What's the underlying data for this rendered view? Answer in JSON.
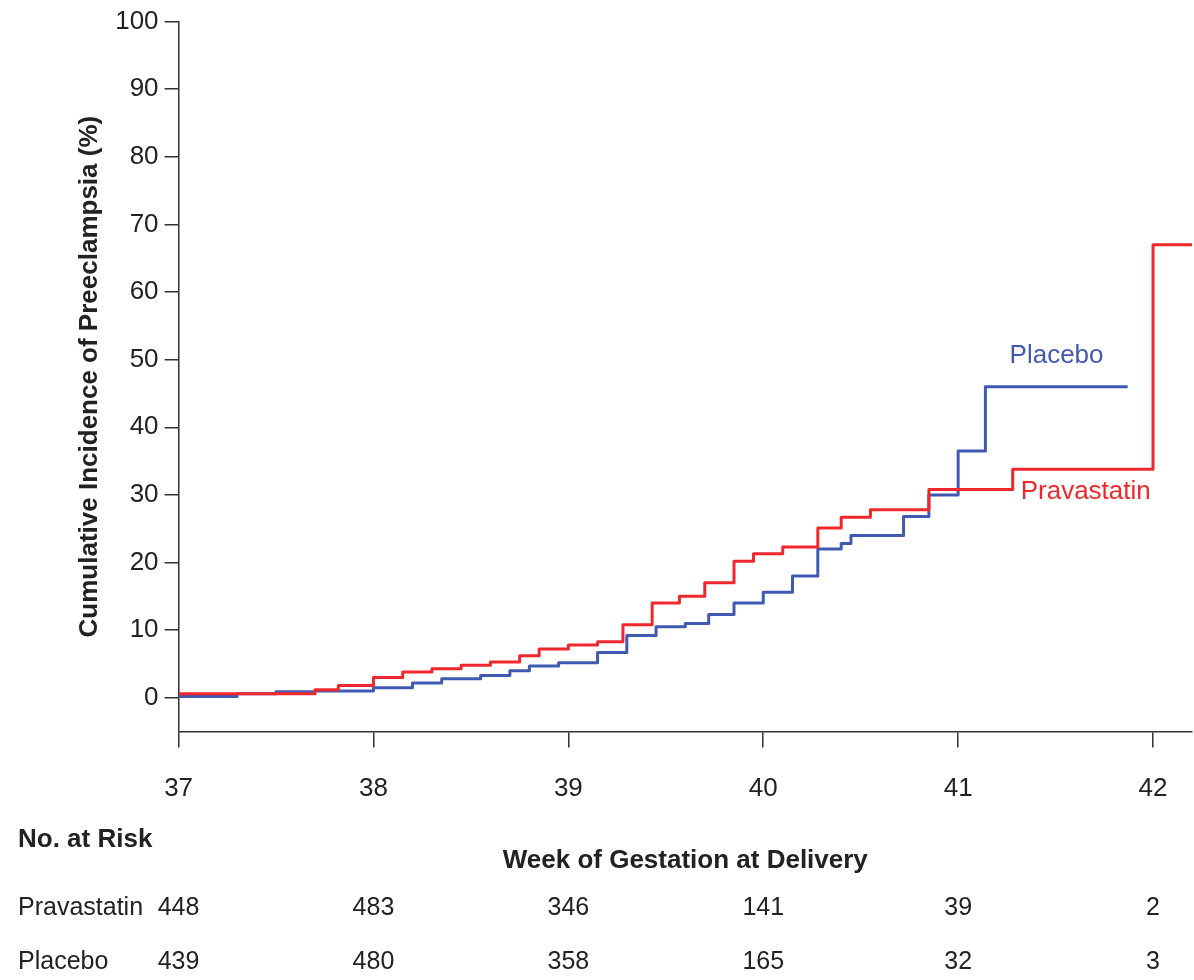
{
  "chart_data": {
    "type": "step",
    "xlabel": "Week of Gestation at Delivery",
    "ylabel": "Cumulative Incidence of Preeclampsia (%)",
    "xlim": [
      37,
      42.2
    ],
    "xticks": [
      37,
      38,
      39,
      40,
      41,
      42
    ],
    "ylim": [
      -5,
      100
    ],
    "yticks": [
      0,
      10,
      20,
      30,
      40,
      50,
      60,
      70,
      80,
      90,
      100
    ],
    "grid": false,
    "legend": false,
    "marker": "none",
    "line_style": "solid",
    "series": [
      {
        "name": "Pravastatin",
        "color": "#f0282d",
        "x": [
          37,
          37.7,
          37.82,
          38.0,
          38.15,
          38.3,
          38.45,
          38.6,
          38.75,
          38.85,
          39.0,
          39.15,
          39.28,
          39.43,
          39.57,
          39.7,
          39.85,
          39.95,
          40.1,
          40.28,
          40.4,
          40.55,
          40.85,
          41.28,
          42.0,
          42.2
        ],
        "values": [
          0.6,
          1.2,
          1.8,
          3.0,
          3.8,
          4.3,
          4.8,
          5.3,
          6.2,
          7.2,
          7.8,
          8.3,
          10.8,
          14.0,
          15.0,
          17.0,
          20.2,
          21.3,
          22.3,
          25.1,
          26.7,
          27.8,
          30.8,
          33.8,
          67.0,
          67.0
        ]
      },
      {
        "name": "Placebo",
        "color": "#3f5ab0",
        "x": [
          37,
          37.3,
          37.5,
          37.7,
          38.0,
          38.2,
          38.35,
          38.55,
          38.7,
          38.8,
          38.95,
          39.15,
          39.3,
          39.45,
          39.6,
          39.72,
          39.85,
          40.0,
          40.15,
          40.28,
          40.4,
          40.45,
          40.72,
          40.85,
          41.0,
          41.14,
          41.87
        ],
        "values": [
          0.2,
          0.6,
          0.9,
          1.0,
          1.5,
          2.2,
          2.8,
          3.3,
          4.0,
          4.7,
          5.2,
          6.7,
          9.2,
          10.5,
          11.0,
          12.3,
          14.0,
          15.6,
          18.0,
          22.0,
          22.8,
          24.0,
          26.8,
          30.0,
          36.5,
          46.0,
          46.0
        ]
      }
    ],
    "annotations": [
      "No. at Risk",
      "Pravastatin",
      "448",
      "483",
      "346",
      "141",
      "39",
      "2",
      "Placebo",
      "439",
      "480",
      "358",
      "165",
      "32",
      "3"
    ]
  }
}
